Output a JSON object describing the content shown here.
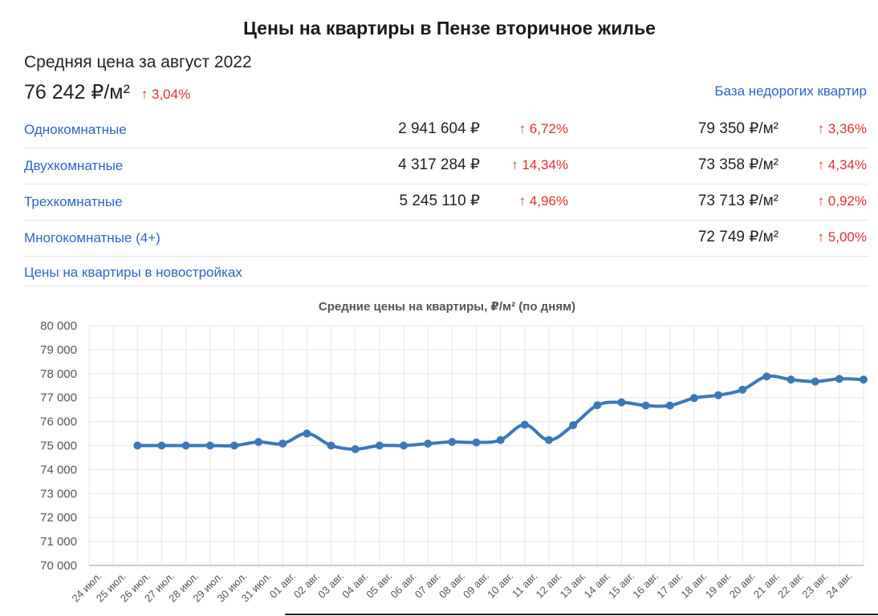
{
  "header": {
    "title": "Цены на квартиры в Пензе вторичное жилье",
    "avg_label": "Средняя цена за август 2022",
    "avg_value": "76 242 ₽/м²",
    "avg_change": "↑ 3,04%",
    "base_link": "База недорогих квартир"
  },
  "rows": [
    {
      "label": "Однокомнатные",
      "total": "2 941 604 ₽",
      "total_change": "↑ 6,72%",
      "per_sqm": "79 350 ₽/м²",
      "per_sqm_change": "↑ 3,36%"
    },
    {
      "label": "Двухкомнатные",
      "total": "4 317 284 ₽",
      "total_change": "↑ 14,34%",
      "per_sqm": "73 358 ₽/м²",
      "per_sqm_change": "↑ 4,34%"
    },
    {
      "label": "Трехкомнатные",
      "total": "5 245 110 ₽",
      "total_change": "↑ 4,96%",
      "per_sqm": "73 713 ₽/м²",
      "per_sqm_change": "↑ 0,92%"
    },
    {
      "label": "Многокомнатные (4+)",
      "total": "",
      "total_change": "",
      "per_sqm": "72 749 ₽/м²",
      "per_sqm_change": "↑ 5,00%"
    }
  ],
  "new_buildings_link": "Цены на квартиры в новостройках",
  "colors": {
    "link": "#2f63c8",
    "increase": "#e03030",
    "series": "#3b78b8"
  },
  "chart_data": {
    "type": "line",
    "title": "Средние цены на квартиры, ₽/м² (по дням)",
    "xlabel": "",
    "ylabel": "",
    "ylim": [
      70000,
      80000
    ],
    "yticks": [
      70000,
      71000,
      72000,
      73000,
      74000,
      75000,
      76000,
      77000,
      78000,
      79000,
      80000
    ],
    "ytick_labels": [
      "70 000",
      "71 000",
      "72 000",
      "73 000",
      "74 000",
      "75 000",
      "76 000",
      "77 000",
      "78 000",
      "79 000",
      "80 000"
    ],
    "categories": [
      "24 июл.",
      "25 июл.",
      "26 июл.",
      "27 июл.",
      "28 июл.",
      "29 июл.",
      "30 июл.",
      "31 июл.",
      "01 авг.",
      "02 авг.",
      "03 авг.",
      "04 авг.",
      "05 авг.",
      "06 авг.",
      "07 авг.",
      "08 авг.",
      "09 авг.",
      "10 авг.",
      "11 авг.",
      "12 авг.",
      "13 авг.",
      "14 авг.",
      "15 авг.",
      "16 авг.",
      "17 авг.",
      "18 авг.",
      "19 авг.",
      "20 авг.",
      "21 авг.",
      "22 авг.",
      "23 авг.",
      "24 авг."
    ],
    "series": [
      {
        "values": [
          null,
          75000,
          75000,
          75000,
          75000,
          75000,
          75150,
          75080,
          75500,
          75000,
          74850,
          75000,
          75000,
          75080,
          75150,
          75130,
          75230,
          75870,
          75230,
          75850,
          76680,
          76800,
          76670,
          76670,
          76980,
          77100,
          77330,
          77880,
          77750,
          77670,
          77780,
          77750
        ]
      }
    ],
    "grid": true,
    "legend": "none"
  }
}
